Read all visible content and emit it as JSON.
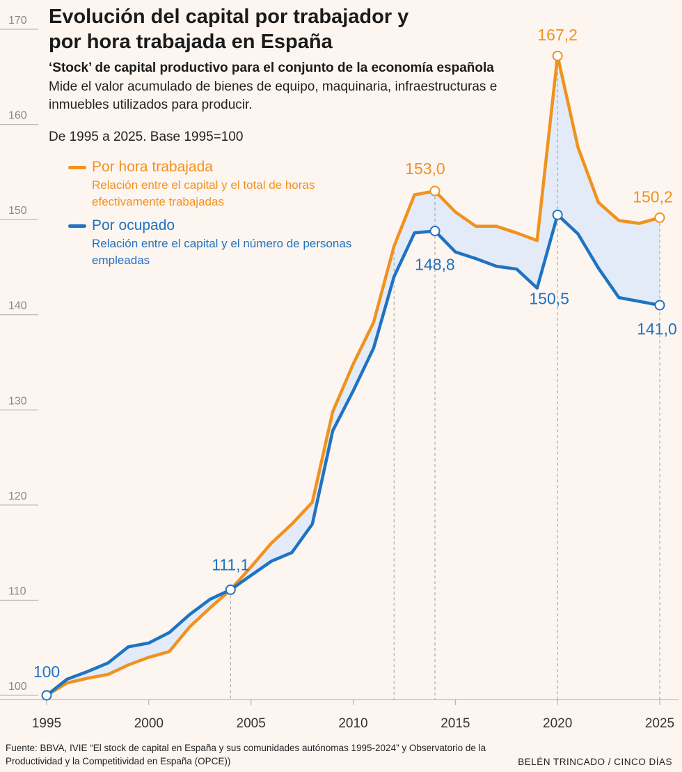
{
  "title": "Evolución del capital por trabajador y por hora trabajada en España",
  "subtitle": "‘Stock’ de capital productivo para el conjunto de la economía española",
  "description": "Mide el valor acumulado de bienes de equipo, maquinaria, infraestructuras e inmuebles utilizados para producir.",
  "range_note": "De 1995 a 2025. Base 1995=100",
  "legend": [
    {
      "label": "Por hora trabajada",
      "desc": "Relación entre el capital y el total de horas efectivamente trabajadas",
      "color": "#f0921f"
    },
    {
      "label": "Por ocupado",
      "desc": "Relación entre el capital y el número de personas empleadas",
      "color": "#1f73c1"
    }
  ],
  "source": "Fuente: BBVA, IVIE “El stock de capital en España y sus comunidades autónomas 1995-2024” y Observatorio de la Productividad y la Competitividad en España (OPCE))",
  "credit": "BELÉN TRINCADO / CINCO DÍAS",
  "colors": {
    "orange": "#f0921f",
    "blue": "#1f73c1",
    "fill": "#dde9f8",
    "axis": "#aaaaaa",
    "text": "#222222"
  },
  "chart_data": {
    "type": "line",
    "title": "Evolución del capital por trabajador y por hora trabajada en España",
    "x": [
      1995,
      1996,
      1997,
      1998,
      1999,
      2000,
      2001,
      2002,
      2003,
      2004,
      2005,
      2006,
      2007,
      2008,
      2009,
      2010,
      2011,
      2012,
      2013,
      2014,
      2015,
      2016,
      2017,
      2018,
      2019,
      2020,
      2021,
      2022,
      2023,
      2024,
      2025
    ],
    "series": [
      {
        "name": "Por hora trabajada",
        "color": "#f0921f",
        "values": [
          100,
          101.3,
          101.8,
          102.2,
          103.2,
          104.0,
          104.6,
          107.2,
          109.2,
          111.1,
          113.5,
          116.0,
          118.0,
          120.3,
          129.8,
          134.8,
          139.2,
          147.2,
          152.6,
          153.0,
          150.8,
          149.3,
          149.3,
          148.6,
          147.8,
          167.2,
          157.6,
          151.8,
          149.9,
          149.6,
          150.2
        ]
      },
      {
        "name": "Por ocupado",
        "color": "#1f73c1",
        "values": [
          100,
          101.7,
          102.5,
          103.4,
          105.1,
          105.5,
          106.6,
          108.5,
          110.1,
          111.1,
          112.6,
          114.1,
          115.0,
          118.0,
          127.8,
          132.0,
          136.5,
          144.0,
          148.6,
          148.8,
          146.6,
          145.9,
          145.1,
          144.8,
          142.8,
          150.5,
          148.5,
          144.9,
          141.8,
          141.4,
          141.0
        ]
      }
    ],
    "annotations": [
      {
        "x": 1995,
        "series": 1,
        "label": "100"
      },
      {
        "x": 2004,
        "series": 1,
        "label": "111,1"
      },
      {
        "x": 2014,
        "series": 0,
        "label": "153,0"
      },
      {
        "x": 2014,
        "series": 1,
        "label": "148,8"
      },
      {
        "x": 2020,
        "series": 0,
        "label": "167,2"
      },
      {
        "x": 2020,
        "series": 1,
        "label": "150,5"
      },
      {
        "x": 2025,
        "series": 0,
        "label": "150,2"
      },
      {
        "x": 2025,
        "series": 1,
        "label": "141,0"
      }
    ],
    "guide_years": [
      2004,
      2012,
      2014,
      2020,
      2025
    ],
    "y_ticks": [
      100,
      110,
      120,
      130,
      140,
      150,
      160,
      170
    ],
    "x_ticks": [
      1995,
      2000,
      2005,
      2010,
      2015,
      2020,
      2025
    ],
    "ylim": [
      100,
      170
    ],
    "xlim": [
      1995,
      2025
    ],
    "xlabel": "",
    "ylabel": ""
  }
}
